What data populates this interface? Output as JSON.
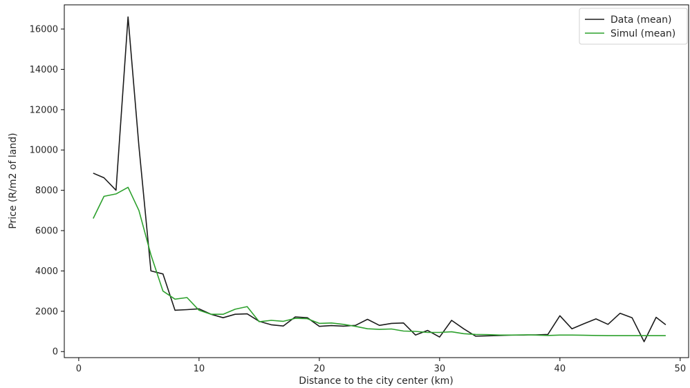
{
  "chart_data": {
    "type": "line",
    "title": "",
    "xlabel": "Distance to the city center (km)",
    "ylabel": "Price (R/m2 of land)",
    "xlim": [
      -1.2,
      50.7
    ],
    "ylim": [
      -300,
      17200
    ],
    "xticks": [
      0,
      10,
      20,
      30,
      40,
      50
    ],
    "yticks": [
      0,
      2000,
      4000,
      6000,
      8000,
      10000,
      12000,
      14000,
      16000
    ],
    "grid": false,
    "legend_position": "top-right",
    "series": [
      {
        "name": "Data (mean)",
        "color": "#1a1a1a",
        "x": [
          1.2,
          2.1,
          3.1,
          4.1,
          5.0,
          6.0,
          7.0,
          8.0,
          9.0,
          10.0,
          11.0,
          12.0,
          13.0,
          14.0,
          15.0,
          16.0,
          17.0,
          18.0,
          19.0,
          20.0,
          21.0,
          22.0,
          23.0,
          24.0,
          25.0,
          26.0,
          27.0,
          28.0,
          29.0,
          30.0,
          31.0,
          32.0,
          33.0,
          34.0,
          35.0,
          36.0,
          37.0,
          38.0,
          39.0,
          40.0,
          41.0,
          42.0,
          43.0,
          44.0,
          45.0,
          46.0,
          47.0,
          48.0,
          48.8
        ],
        "y": [
          8850,
          8620,
          8000,
          16600,
          10200,
          4000,
          3850,
          2050,
          2080,
          2120,
          1850,
          1680,
          1850,
          1870,
          1500,
          1330,
          1270,
          1720,
          1680,
          1250,
          1290,
          1260,
          1300,
          1600,
          1300,
          1400,
          1420,
          820,
          1050,
          720,
          1550,
          1130,
          760,
          780,
          800,
          820,
          820,
          830,
          850,
          1780,
          1130,
          1380,
          1620,
          1350,
          1900,
          1680,
          490,
          1700,
          1330
        ]
      },
      {
        "name": "Simul (mean)",
        "color": "#2ca02c",
        "x": [
          1.2,
          2.1,
          3.1,
          4.1,
          5.0,
          6.0,
          7.0,
          8.0,
          9.0,
          10.0,
          11.0,
          12.0,
          13.0,
          14.0,
          15.0,
          16.0,
          17.0,
          18.0,
          19.0,
          20.0,
          21.0,
          22.0,
          23.0,
          24.0,
          25.0,
          26.0,
          27.0,
          28.0,
          29.0,
          30.0,
          31.0,
          32.0,
          33.0,
          34.0,
          35.0,
          36.0,
          37.0,
          38.0,
          39.0,
          40.0,
          41.0,
          42.0,
          43.0,
          44.0,
          45.0,
          46.0,
          47.0,
          48.0,
          48.8
        ],
        "y": [
          6600,
          7700,
          7820,
          8150,
          7000,
          4800,
          3000,
          2600,
          2680,
          2050,
          1850,
          1850,
          2100,
          2230,
          1480,
          1550,
          1500,
          1650,
          1630,
          1400,
          1420,
          1350,
          1250,
          1130,
          1100,
          1120,
          1020,
          1000,
          950,
          950,
          980,
          890,
          850,
          840,
          820,
          820,
          830,
          820,
          800,
          820,
          820,
          810,
          800,
          790,
          790,
          790,
          790,
          790,
          790
        ]
      }
    ]
  }
}
